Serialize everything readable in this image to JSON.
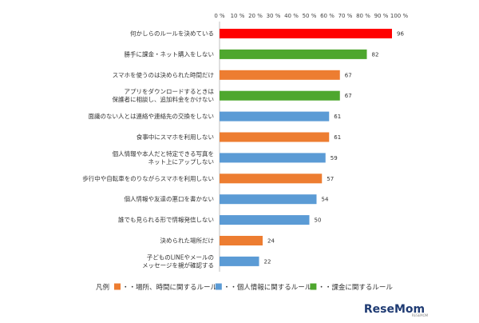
{
  "chart_data": {
    "type": "bar",
    "orientation": "horizontal",
    "title": "",
    "xlabel": "",
    "ylabel": "",
    "xlim": [
      0,
      100
    ],
    "ticks": [
      "0 %",
      "10 %",
      "20 %",
      "30 %",
      "40 %",
      "50 %",
      "60 %",
      "70 %",
      "80 %",
      "90 %",
      "100 %"
    ],
    "grid": false,
    "categories": [
      [
        "何かしらのルールを決めている"
      ],
      [
        "勝手に課金・ネット購入をしない"
      ],
      [
        "スマホを使うのは決められた時間だけ"
      ],
      [
        "アプリをダウンロードするときは",
        "保護者に相談し、追加料金をかけない"
      ],
      [
        "面識のない人とは連絡や連絡先の交換をしない"
      ],
      [
        "食事中にスマホを利用しない"
      ],
      [
        "個人情報や本人だと特定できる写真を",
        "ネット上にアップしない"
      ],
      [
        "歩行中や自転車をのりながらスマホを利用しない"
      ],
      [
        "個人情報や友達の悪口を書かない"
      ],
      [
        "誰でも見られる形で情報発信しない"
      ],
      [
        "決められた場所だけ"
      ],
      [
        "子どものLINEやメールの",
        "メッセージを親が確認する"
      ]
    ],
    "values": [
      96,
      82,
      67,
      67,
      61,
      61,
      59,
      57,
      54,
      50,
      24,
      22
    ],
    "value_labels": [
      "96",
      "82",
      "67",
      "67",
      "61",
      "61",
      "59",
      "57",
      "54",
      "50",
      "24",
      "22"
    ],
    "groups": [
      "all",
      "charge",
      "time",
      "charge",
      "privacy",
      "time",
      "privacy",
      "time",
      "privacy",
      "privacy",
      "time",
      "privacy"
    ],
    "legend": {
      "placement": "bottom",
      "prefix": "凡例",
      "entries": [
        {
          "group": "time",
          "label": "・・場所、時間に関するルール"
        },
        {
          "group": "privacy",
          "label": "・・個人情報に関するルール"
        },
        {
          "group": "charge",
          "label": "・・課金に関するルール"
        }
      ]
    }
  },
  "colors": {
    "all": "#ff0000",
    "time": "#ed7d31",
    "privacy": "#5b9bd5",
    "charge": "#4ea72e",
    "axis": "#bfbfbf"
  },
  "logo": {
    "text": "ReseMom",
    "sub": "RESEMOM"
  }
}
